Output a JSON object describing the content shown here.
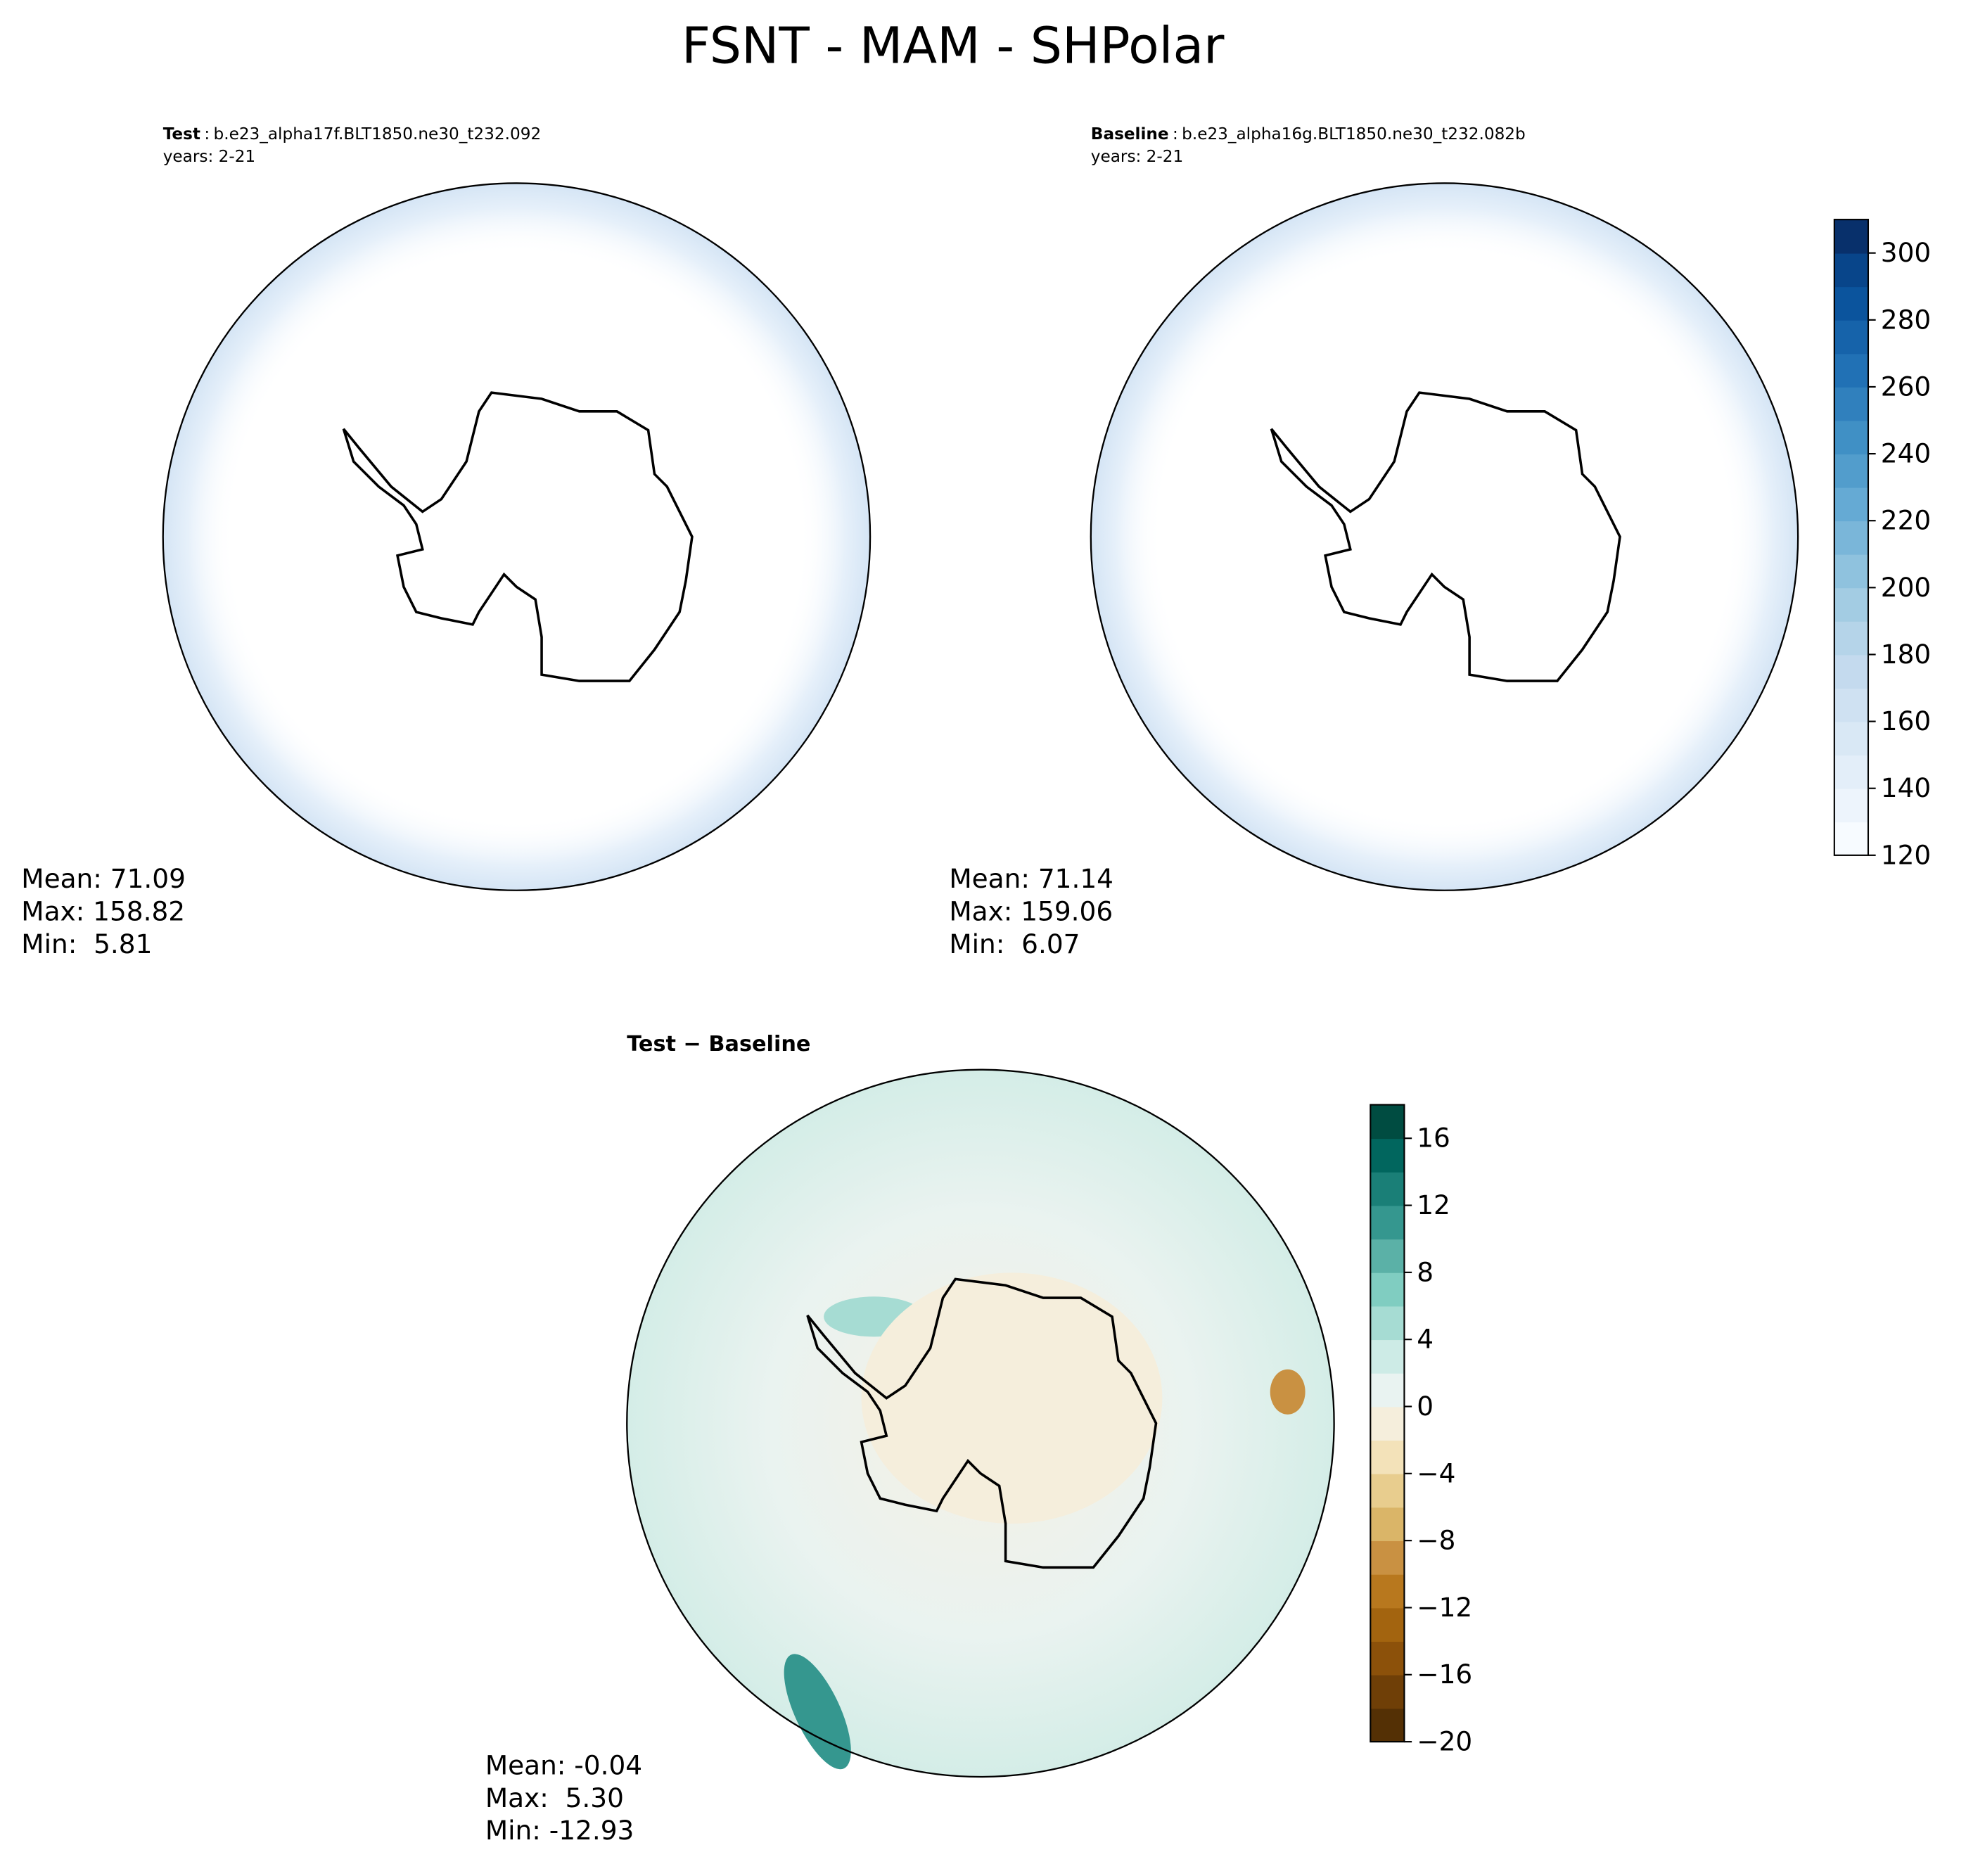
{
  "title": "FSNT - MAM - SHPolar",
  "panels": [
    {
      "label": "Test",
      "separator": ":",
      "case": "b.e23_alpha17f.BLT1850.ne30_t232.092",
      "years": "years: 2-21",
      "stats": [
        "Mean: 71.09",
        "Max: 158.82",
        "Min:  5.81"
      ]
    },
    {
      "label": "Baseline",
      "separator": ":",
      "case": "b.e23_alpha16g.BLT1850.ne30_t232.082b",
      "years": "years: 2-21",
      "stats": [
        "Mean: 71.14",
        "Max: 159.06",
        "Min:  6.07"
      ]
    },
    {
      "label": "Test − Baseline",
      "stats": [
        "Mean: -0.04",
        "Max:  5.30",
        "Min: -12.93"
      ]
    }
  ],
  "colorbars": [
    {
      "lim": [
        120,
        310
      ],
      "ticks": [
        120,
        140,
        160,
        180,
        200,
        220,
        240,
        260,
        280,
        300
      ],
      "colors": [
        "#f7fbff",
        "#edf4fc",
        "#e3eef9",
        "#d9e8f5",
        "#cfe1f2",
        "#c4daee",
        "#b5d4e9",
        "#a3cce3",
        "#8fc2de",
        "#7ab6d9",
        "#65aad4",
        "#529dcc",
        "#4090c5",
        "#3080bd",
        "#2171b5",
        "#1663aa",
        "#0b549d",
        "#08458a",
        "#08306b"
      ]
    },
    {
      "lim": [
        -20,
        18
      ],
      "ticks": [
        {
          "value": -20,
          "label": "−20"
        },
        {
          "value": -16,
          "label": "−16"
        },
        {
          "value": -12,
          "label": "−12"
        },
        {
          "value": -8,
          "label": "−8"
        },
        {
          "value": -4,
          "label": "−4"
        },
        0,
        4,
        8,
        12,
        16
      ],
      "colors": [
        "#543005",
        "#6f3f07",
        "#8c510a",
        "#a3640f",
        "#b8781e",
        "#c99142",
        "#dab568",
        "#e8cd8e",
        "#f3e2b9",
        "#f5eedc",
        "#e9f3f1",
        "#cdebe6",
        "#a6dcd3",
        "#80cdc1",
        "#5bb1a7",
        "#35978f",
        "#1a7f77",
        "#01665e",
        "#004c41"
      ]
    }
  ]
}
